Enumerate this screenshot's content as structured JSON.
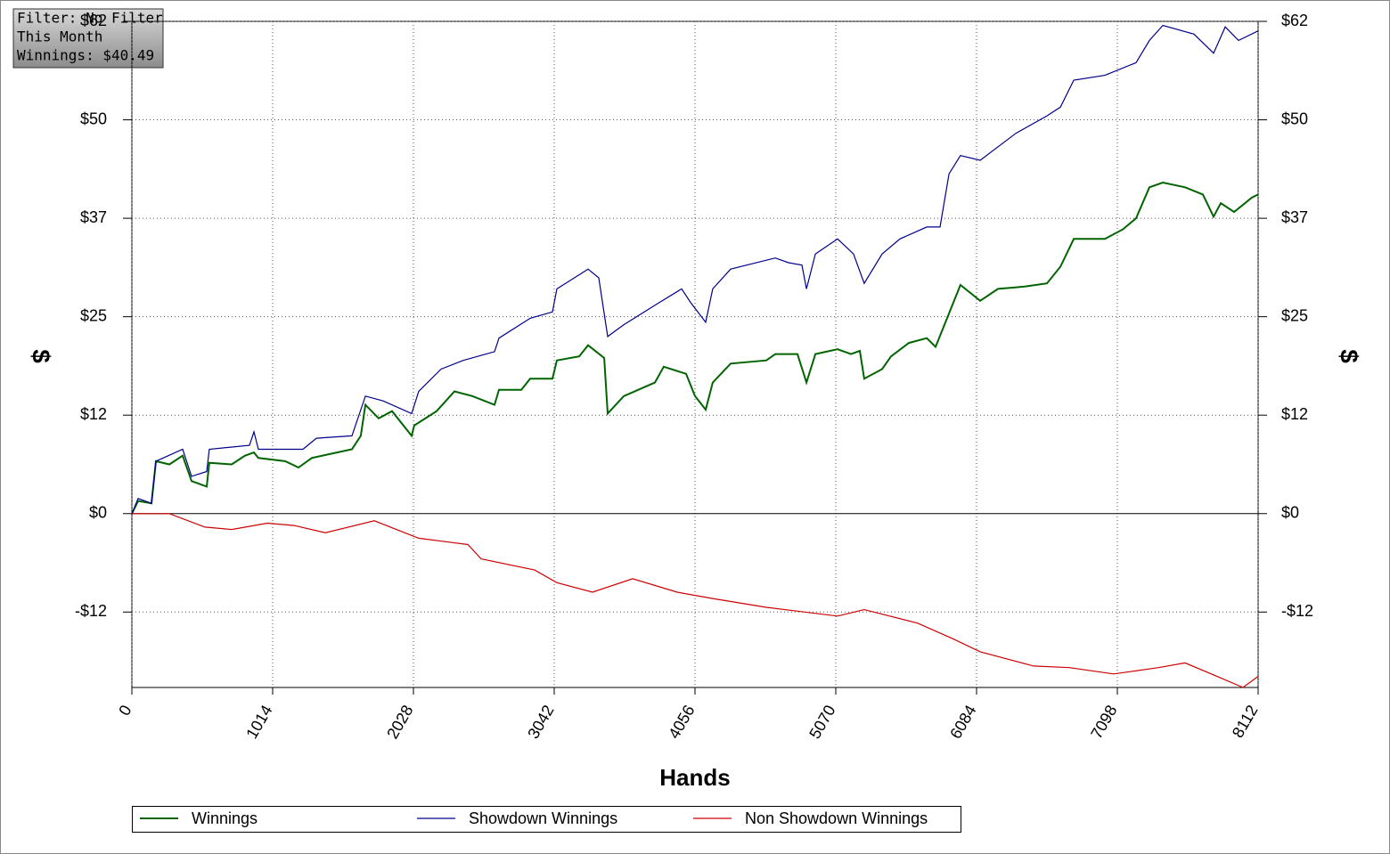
{
  "info": {
    "filter": "Filter: No Filter",
    "period": "This Month",
    "winnings": "Winnings: $40.49"
  },
  "chart_data": {
    "type": "line",
    "xlabel": "Hands",
    "ylabel": "$",
    "y2label": "$",
    "xlim": [
      0,
      8112
    ],
    "xticks": [
      0,
      1014,
      2028,
      3042,
      4056,
      5070,
      6084,
      7098,
      8112
    ],
    "ylim": [
      -21.9,
      62
    ],
    "yticks": [
      {
        "value": -12.4,
        "label": "-$12"
      },
      {
        "value": 0,
        "label": "$0"
      },
      {
        "value": 12.4,
        "label": "$12"
      },
      {
        "value": 24.8,
        "label": "$25"
      },
      {
        "value": 37.2,
        "label": "$37"
      },
      {
        "value": 49.6,
        "label": "$50"
      },
      {
        "value": 62,
        "label": "$62"
      }
    ],
    "grid": true,
    "series": [
      {
        "name": "Winnings",
        "color": "#006400",
        "x": [
          0,
          45,
          141,
          173,
          270,
          366,
          430,
          539,
          558,
          719,
          815,
          879,
          911,
          1104,
          1200,
          1296,
          1425,
          1585,
          1649,
          1682,
          1778,
          1874,
          2015,
          2034,
          2195,
          2323,
          2452,
          2612,
          2644,
          2805,
          2869,
          3029,
          3061,
          3222,
          3286,
          3402,
          3427,
          3543,
          3767,
          3831,
          3992,
          4056,
          4133,
          4184,
          4313,
          4570,
          4634,
          4794,
          4859,
          4923,
          5083,
          5179,
          5243,
          5275,
          5404,
          5468,
          5596,
          5725,
          5789,
          5853,
          5968,
          6110,
          6238,
          6431,
          6591,
          6688,
          6784,
          7008,
          7137,
          7233,
          7329,
          7426,
          7586,
          7714,
          7791,
          7843,
          7939,
          8067,
          8112
        ],
        "values": [
          0,
          1.6,
          1.3,
          6.6,
          6.2,
          7.3,
          4.1,
          3.4,
          6.4,
          6.2,
          7.3,
          7.7,
          7.0,
          6.6,
          5.8,
          7.0,
          7.5,
          8.1,
          9.8,
          13.7,
          12.0,
          12.9,
          9.8,
          11.1,
          12.9,
          15.4,
          14.8,
          13.7,
          15.6,
          15.6,
          17.0,
          17.0,
          19.3,
          19.8,
          21.2,
          19.6,
          12.6,
          14.8,
          16.5,
          18.5,
          17.6,
          14.8,
          13.1,
          16.5,
          18.9,
          19.3,
          20.1,
          20.1,
          16.5,
          20.1,
          20.7,
          20.1,
          20.5,
          17.0,
          18.2,
          19.8,
          21.5,
          22.1,
          21.0,
          23.8,
          28.8,
          26.8,
          28.3,
          28.6,
          29.0,
          31.1,
          34.6,
          34.6,
          35.8,
          37.2,
          41.1,
          41.7,
          41.1,
          40.2,
          37.4,
          39.1,
          38.0,
          39.8,
          40.2
        ]
      },
      {
        "name": "Showdown Winnings",
        "color": "#00008b",
        "x": [
          0,
          45,
          141,
          173,
          366,
          430,
          539,
          558,
          847,
          879,
          911,
          1232,
          1329,
          1585,
          1682,
          1810,
          2015,
          2066,
          2227,
          2387,
          2612,
          2644,
          2869,
          3029,
          3061,
          3286,
          3363,
          3427,
          3543,
          3800,
          3960,
          4024,
          4133,
          4184,
          4313,
          4634,
          4730,
          4826,
          4859,
          4923,
          5083,
          5198,
          5275,
          5404,
          5532,
          5725,
          5821,
          5886,
          5968,
          6110,
          6367,
          6591,
          6688,
          6784,
          7008,
          7233,
          7329,
          7426,
          7650,
          7791,
          7875,
          7971,
          8112
        ],
        "values": [
          0,
          1.9,
          1.3,
          6.6,
          8.1,
          4.7,
          5.3,
          8.1,
          8.6,
          10.3,
          8.1,
          8.1,
          9.5,
          9.8,
          14.8,
          14.2,
          12.6,
          15.4,
          18.2,
          19.3,
          20.4,
          22.1,
          24.6,
          25.4,
          28.3,
          30.8,
          29.7,
          22.3,
          23.8,
          26.6,
          28.3,
          26.6,
          24.1,
          28.3,
          30.8,
          32.2,
          31.6,
          31.3,
          28.3,
          32.7,
          34.6,
          32.7,
          29.0,
          32.7,
          34.6,
          36.1,
          36.1,
          42.8,
          45.1,
          44.5,
          47.9,
          50.1,
          51.2,
          54.6,
          55.2,
          56.8,
          59.6,
          61.5,
          60.4,
          58.0,
          61.3,
          59.6,
          60.8
        ]
      },
      {
        "name": "Non Showdown Winnings",
        "color": "#cc0000",
        "x": [
          0,
          270,
          526,
          719,
          976,
          1168,
          1393,
          1746,
          2066,
          2420,
          2516,
          2901,
          3061,
          3318,
          3607,
          3928,
          4184,
          4570,
          5083,
          5275,
          5660,
          5917,
          6110,
          6495,
          6752,
          7072,
          7394,
          7586,
          7843,
          8003,
          8112
        ],
        "values": [
          0,
          0,
          -1.7,
          -2.0,
          -1.2,
          -1.5,
          -2.4,
          -0.9,
          -3.1,
          -3.9,
          -5.7,
          -7.1,
          -8.7,
          -9.9,
          -8.2,
          -9.9,
          -10.7,
          -11.8,
          -12.9,
          -12.1,
          -13.8,
          -15.8,
          -17.4,
          -19.2,
          -19.4,
          -20.2,
          -19.4,
          -18.8,
          -20.7,
          -21.9,
          -20.5
        ]
      }
    ]
  }
}
